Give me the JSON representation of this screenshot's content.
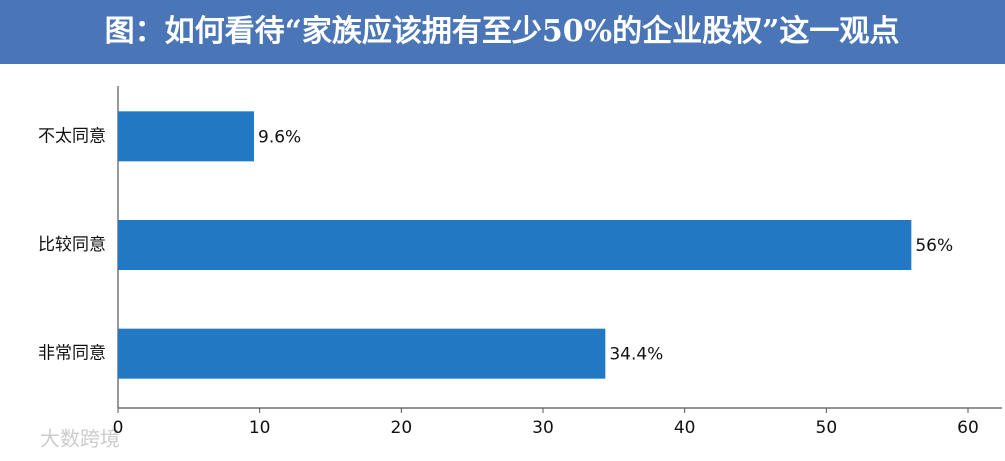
{
  "chart_data": {
    "type": "hbar",
    "title": "图：如何看待“家族应该拥有至少50%的企业股权”这一观点",
    "categories": [
      "不太同意",
      "比较同意",
      "非常同意"
    ],
    "values": [
      9.6,
      56,
      34.4
    ],
    "value_labels": [
      "9.6%",
      "56%",
      "34.4%"
    ],
    "color": "#2378c4",
    "xlim": [
      0,
      60
    ],
    "xticks": [
      0,
      10,
      20,
      30,
      40,
      50,
      60
    ],
    "grid": false
  },
  "watermark": "大数跨境"
}
